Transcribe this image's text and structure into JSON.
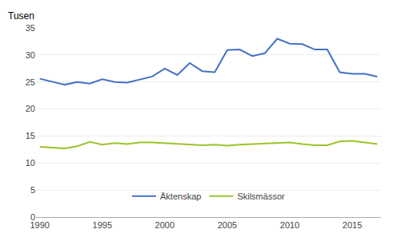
{
  "chart_data": {
    "type": "line",
    "ylabel": "Tusen",
    "x": [
      1990,
      1991,
      1992,
      1993,
      1994,
      1995,
      1996,
      1997,
      1998,
      1999,
      2000,
      2001,
      2002,
      2003,
      2004,
      2005,
      2006,
      2007,
      2008,
      2009,
      2010,
      2011,
      2012,
      2013,
      2014,
      2015,
      2016,
      2017
    ],
    "series": [
      {
        "name": "Äktenskap",
        "color": "#4472C4",
        "values": [
          25.6,
          25.0,
          24.5,
          25.0,
          24.7,
          25.5,
          25.0,
          24.9,
          25.5,
          26.0,
          27.5,
          26.3,
          28.5,
          27.0,
          26.8,
          30.9,
          31.0,
          29.8,
          30.3,
          33.0,
          32.1,
          32.0,
          31.0,
          31.0,
          26.8,
          26.5,
          26.5,
          26.0
        ]
      },
      {
        "name": "Skilsmässor",
        "color": "#9DC32A",
        "values": [
          13.0,
          12.8,
          12.7,
          13.1,
          13.9,
          13.4,
          13.7,
          13.5,
          13.8,
          13.8,
          13.7,
          13.6,
          13.5,
          13.3,
          13.4,
          13.2,
          13.4,
          13.5,
          13.6,
          13.7,
          13.8,
          13.5,
          13.3,
          13.3,
          14.0,
          14.1,
          13.8,
          13.5
        ]
      }
    ],
    "xlim": [
      1989.7,
      2017.3
    ],
    "xticks": [
      1990,
      1995,
      2000,
      2005,
      2010,
      2015
    ],
    "ylim": [
      0,
      35
    ],
    "yticks": [
      0,
      5,
      10,
      15,
      20,
      25,
      30,
      35
    ],
    "grid": true,
    "legend": "bottom"
  }
}
